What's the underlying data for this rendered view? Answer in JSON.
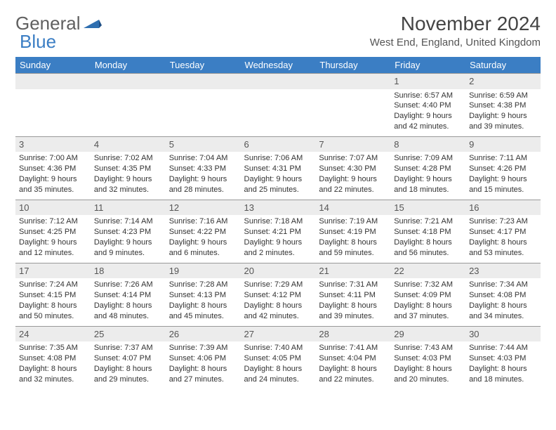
{
  "logo": {
    "text_general": "General",
    "text_blue": "Blue"
  },
  "title": "November 2024",
  "location": "West End, England, United Kingdom",
  "calendar": {
    "header_bg": "#3b7ec4",
    "header_fg": "#ffffff",
    "daynum_bg": "#ececec",
    "border_color": "#999999",
    "font_family": "Arial",
    "day_headers": [
      "Sunday",
      "Monday",
      "Tuesday",
      "Wednesday",
      "Thursday",
      "Friday",
      "Saturday"
    ],
    "weeks": [
      [
        null,
        null,
        null,
        null,
        null,
        {
          "num": "1",
          "sunrise": "Sunrise: 6:57 AM",
          "sunset": "Sunset: 4:40 PM",
          "day1": "Daylight: 9 hours",
          "day2": "and 42 minutes."
        },
        {
          "num": "2",
          "sunrise": "Sunrise: 6:59 AM",
          "sunset": "Sunset: 4:38 PM",
          "day1": "Daylight: 9 hours",
          "day2": "and 39 minutes."
        }
      ],
      [
        {
          "num": "3",
          "sunrise": "Sunrise: 7:00 AM",
          "sunset": "Sunset: 4:36 PM",
          "day1": "Daylight: 9 hours",
          "day2": "and 35 minutes."
        },
        {
          "num": "4",
          "sunrise": "Sunrise: 7:02 AM",
          "sunset": "Sunset: 4:35 PM",
          "day1": "Daylight: 9 hours",
          "day2": "and 32 minutes."
        },
        {
          "num": "5",
          "sunrise": "Sunrise: 7:04 AM",
          "sunset": "Sunset: 4:33 PM",
          "day1": "Daylight: 9 hours",
          "day2": "and 28 minutes."
        },
        {
          "num": "6",
          "sunrise": "Sunrise: 7:06 AM",
          "sunset": "Sunset: 4:31 PM",
          "day1": "Daylight: 9 hours",
          "day2": "and 25 minutes."
        },
        {
          "num": "7",
          "sunrise": "Sunrise: 7:07 AM",
          "sunset": "Sunset: 4:30 PM",
          "day1": "Daylight: 9 hours",
          "day2": "and 22 minutes."
        },
        {
          "num": "8",
          "sunrise": "Sunrise: 7:09 AM",
          "sunset": "Sunset: 4:28 PM",
          "day1": "Daylight: 9 hours",
          "day2": "and 18 minutes."
        },
        {
          "num": "9",
          "sunrise": "Sunrise: 7:11 AM",
          "sunset": "Sunset: 4:26 PM",
          "day1": "Daylight: 9 hours",
          "day2": "and 15 minutes."
        }
      ],
      [
        {
          "num": "10",
          "sunrise": "Sunrise: 7:12 AM",
          "sunset": "Sunset: 4:25 PM",
          "day1": "Daylight: 9 hours",
          "day2": "and 12 minutes."
        },
        {
          "num": "11",
          "sunrise": "Sunrise: 7:14 AM",
          "sunset": "Sunset: 4:23 PM",
          "day1": "Daylight: 9 hours",
          "day2": "and 9 minutes."
        },
        {
          "num": "12",
          "sunrise": "Sunrise: 7:16 AM",
          "sunset": "Sunset: 4:22 PM",
          "day1": "Daylight: 9 hours",
          "day2": "and 6 minutes."
        },
        {
          "num": "13",
          "sunrise": "Sunrise: 7:18 AM",
          "sunset": "Sunset: 4:21 PM",
          "day1": "Daylight: 9 hours",
          "day2": "and 2 minutes."
        },
        {
          "num": "14",
          "sunrise": "Sunrise: 7:19 AM",
          "sunset": "Sunset: 4:19 PM",
          "day1": "Daylight: 8 hours",
          "day2": "and 59 minutes."
        },
        {
          "num": "15",
          "sunrise": "Sunrise: 7:21 AM",
          "sunset": "Sunset: 4:18 PM",
          "day1": "Daylight: 8 hours",
          "day2": "and 56 minutes."
        },
        {
          "num": "16",
          "sunrise": "Sunrise: 7:23 AM",
          "sunset": "Sunset: 4:17 PM",
          "day1": "Daylight: 8 hours",
          "day2": "and 53 minutes."
        }
      ],
      [
        {
          "num": "17",
          "sunrise": "Sunrise: 7:24 AM",
          "sunset": "Sunset: 4:15 PM",
          "day1": "Daylight: 8 hours",
          "day2": "and 50 minutes."
        },
        {
          "num": "18",
          "sunrise": "Sunrise: 7:26 AM",
          "sunset": "Sunset: 4:14 PM",
          "day1": "Daylight: 8 hours",
          "day2": "and 48 minutes."
        },
        {
          "num": "19",
          "sunrise": "Sunrise: 7:28 AM",
          "sunset": "Sunset: 4:13 PM",
          "day1": "Daylight: 8 hours",
          "day2": "and 45 minutes."
        },
        {
          "num": "20",
          "sunrise": "Sunrise: 7:29 AM",
          "sunset": "Sunset: 4:12 PM",
          "day1": "Daylight: 8 hours",
          "day2": "and 42 minutes."
        },
        {
          "num": "21",
          "sunrise": "Sunrise: 7:31 AM",
          "sunset": "Sunset: 4:11 PM",
          "day1": "Daylight: 8 hours",
          "day2": "and 39 minutes."
        },
        {
          "num": "22",
          "sunrise": "Sunrise: 7:32 AM",
          "sunset": "Sunset: 4:09 PM",
          "day1": "Daylight: 8 hours",
          "day2": "and 37 minutes."
        },
        {
          "num": "23",
          "sunrise": "Sunrise: 7:34 AM",
          "sunset": "Sunset: 4:08 PM",
          "day1": "Daylight: 8 hours",
          "day2": "and 34 minutes."
        }
      ],
      [
        {
          "num": "24",
          "sunrise": "Sunrise: 7:35 AM",
          "sunset": "Sunset: 4:08 PM",
          "day1": "Daylight: 8 hours",
          "day2": "and 32 minutes."
        },
        {
          "num": "25",
          "sunrise": "Sunrise: 7:37 AM",
          "sunset": "Sunset: 4:07 PM",
          "day1": "Daylight: 8 hours",
          "day2": "and 29 minutes."
        },
        {
          "num": "26",
          "sunrise": "Sunrise: 7:39 AM",
          "sunset": "Sunset: 4:06 PM",
          "day1": "Daylight: 8 hours",
          "day2": "and 27 minutes."
        },
        {
          "num": "27",
          "sunrise": "Sunrise: 7:40 AM",
          "sunset": "Sunset: 4:05 PM",
          "day1": "Daylight: 8 hours",
          "day2": "and 24 minutes."
        },
        {
          "num": "28",
          "sunrise": "Sunrise: 7:41 AM",
          "sunset": "Sunset: 4:04 PM",
          "day1": "Daylight: 8 hours",
          "day2": "and 22 minutes."
        },
        {
          "num": "29",
          "sunrise": "Sunrise: 7:43 AM",
          "sunset": "Sunset: 4:03 PM",
          "day1": "Daylight: 8 hours",
          "day2": "and 20 minutes."
        },
        {
          "num": "30",
          "sunrise": "Sunrise: 7:44 AM",
          "sunset": "Sunset: 4:03 PM",
          "day1": "Daylight: 8 hours",
          "day2": "and 18 minutes."
        }
      ]
    ]
  }
}
